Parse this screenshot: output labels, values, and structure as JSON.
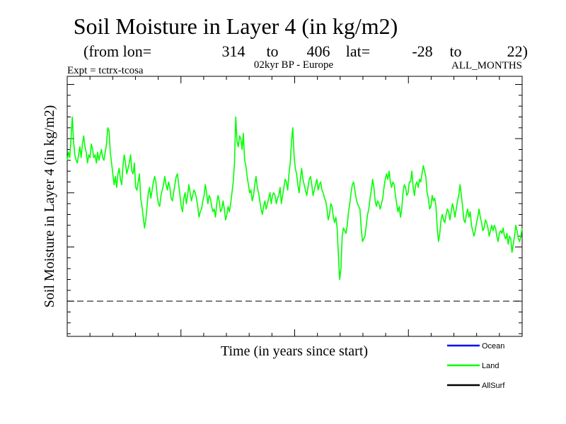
{
  "chart_data": {
    "type": "line",
    "title": "Soil Moisture in Layer 4 (in kg/m2)",
    "subtitle": {
      "prefix": "(from lon=",
      "lon_from": "314",
      "to1": "to",
      "lon_to": "406",
      "lat_label": "lat=",
      "lat_from": "-28",
      "to2": "to",
      "lat_to": "22)"
    },
    "expt_label": "Expt = tctrx-tcosa",
    "period_label": "02kyr BP - Europe",
    "months_label": "ALL_MONTHS",
    "xlabel": "Time (in years since start)",
    "ylabel": "Soil Moisture in Layer 4 (in kg/m2)",
    "xlim": [
      0,
      100
    ],
    "ylim": [
      -6.5,
      41.5
    ],
    "reference_line": 0,
    "series": [
      {
        "name": "Land",
        "color": "#00ff00",
        "values": [
          26,
          27.5,
          26.5,
          30,
          34,
          29.5,
          27,
          26,
          25.5,
          27,
          28.5,
          26.5,
          29,
          30.5,
          28.5,
          27.5,
          25.5,
          27,
          26.5,
          29,
          28,
          26.5,
          27,
          25.5,
          27.5,
          26,
          27,
          28,
          26.5,
          26,
          27.5,
          29,
          32,
          31.5,
          27.5,
          25.5,
          23.5,
          21.5,
          23,
          21,
          23.5,
          24.5,
          22.5,
          21.5,
          25,
          27,
          25.5,
          23.5,
          24.5,
          25.5,
          27,
          24,
          23.5,
          25.5,
          21,
          20.5,
          22,
          23.5,
          19,
          17.5,
          15.5,
          13.5,
          15,
          17.5,
          20,
          21,
          19,
          20.5,
          22,
          23,
          22,
          19.5,
          18,
          17.5,
          19.5,
          20.5,
          21.5,
          23,
          21.5,
          20.5,
          22,
          21,
          19,
          18.5,
          20,
          21.5,
          23,
          23.5,
          21.5,
          19.5,
          17.5,
          16.5,
          19,
          20,
          18,
          19.5,
          21.5,
          20,
          18.5,
          19.5,
          20.5,
          20,
          19,
          17.5,
          15.5,
          16.5,
          17,
          18.5,
          19.5,
          21.5,
          20,
          18,
          19.5,
          19,
          17.5,
          16.5,
          17,
          15.5,
          18,
          19.5,
          18.5,
          16.5,
          17,
          18.5,
          17,
          15,
          16,
          17.5,
          16.5,
          18,
          20,
          22,
          25.5,
          34,
          29.5,
          28.5,
          30.5,
          30,
          28,
          31,
          26,
          25,
          23,
          21.5,
          20,
          20.5,
          18.5,
          19.5,
          21.5,
          23,
          21,
          20,
          18.5,
          17,
          16,
          17.5,
          18.5,
          17,
          18,
          19,
          20,
          18,
          19.5,
          20,
          19.5,
          18,
          19,
          19.5,
          21,
          18,
          19.5,
          21,
          22.5,
          22,
          20.5,
          23.5,
          25.5,
          29.5,
          32,
          27,
          24.5,
          23.5,
          21.5,
          20,
          22.5,
          24.5,
          22.5,
          21.5,
          20.5,
          19.5,
          21,
          22.5,
          23,
          21.5,
          19.5,
          20.5,
          21.5,
          22.5,
          20.5,
          21.5,
          22,
          20.5,
          20,
          19,
          18.5,
          17,
          15,
          16,
          18,
          17.5,
          15.5,
          14.5,
          15.5,
          13.5,
          8.5,
          4,
          6,
          12,
          13.5,
          13,
          12.5,
          14,
          16.5,
          18,
          20,
          21.5,
          22,
          20.5,
          19,
          18,
          17.5,
          17,
          13.5,
          11,
          11.5,
          12,
          14,
          16,
          17,
          19,
          20.5,
          22.5,
          21,
          18.5,
          17.5,
          18.5,
          18,
          17,
          18,
          19,
          21,
          22.5,
          23.5,
          22.5,
          24,
          22,
          21,
          22,
          21.5,
          19.5,
          18,
          16.5,
          17.5,
          15.5,
          17,
          20,
          21.5,
          21,
          19.5,
          20,
          22,
          22,
          24,
          21,
          19.5,
          21.5,
          22,
          21,
          22.5,
          22,
          23.5,
          25,
          24,
          23,
          20,
          19,
          17,
          17.5,
          19.5,
          18.5,
          19,
          17.5,
          13.5,
          11,
          12.5,
          15,
          16,
          15,
          14.5,
          16,
          17,
          16.5,
          15,
          16.5,
          18,
          17,
          15.5,
          17,
          18.5,
          19.5,
          21.5,
          19.5,
          17.5,
          15,
          14.5,
          16,
          17,
          15.5,
          16.5,
          14,
          13,
          12,
          13,
          14.5,
          15.5,
          17,
          15.5,
          14.5,
          13,
          13.5,
          15,
          14.5,
          13.5,
          12,
          13,
          14,
          13,
          14,
          13.5,
          12,
          11,
          12.5,
          13,
          12.5,
          13.5,
          12,
          11.5,
          12.5,
          10.5,
          12,
          11.5,
          9,
          10.5,
          12,
          14,
          13,
          11.5,
          11,
          12,
          13.5
        ]
      },
      {
        "name": "Ocean",
        "color": "#0000ff",
        "values": []
      },
      {
        "name": "AllSurf",
        "color": "#000000",
        "values": []
      }
    ],
    "legend": [
      "Ocean",
      "Land",
      "AllSurf"
    ]
  }
}
